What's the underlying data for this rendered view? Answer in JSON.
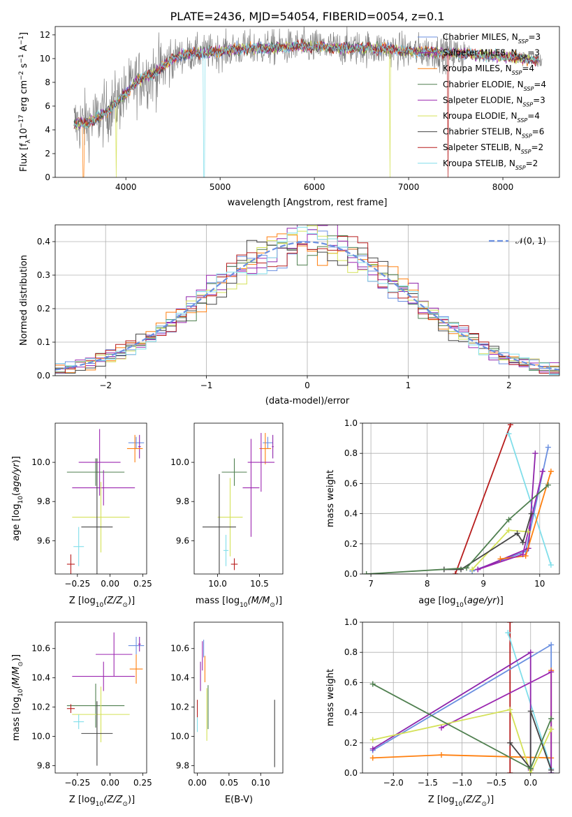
{
  "figure": {
    "title": "PLATE=2436, MJD=54054, FIBERID=0054, z=0.1"
  },
  "colors": {
    "Chabrier MILES": "#6a8fe0",
    "Salpeter MILES": "#8e24aa",
    "Kroupa MILES": "#ff7f0e",
    "Chabrier ELODIE": "#4f7f4f",
    "Salpeter ELODIE": "#9c27b0",
    "Kroupa ELODIE": "#d4e157",
    "Chabrier STELIB": "#444444",
    "Salpeter STELIB": "#b71c1c",
    "Kroupa STELIB": "#80deea",
    "data": "#808080"
  },
  "chart_data": [
    {
      "id": "spectrum",
      "type": "line",
      "xlabel": "wavelength [Angstrom, rest frame]",
      "ylabel": "Flux [f",
      "ylabel_parts": [
        "λ",
        "10",
        "−17",
        " erg cm",
        "−2",
        " s",
        "−1",
        " A",
        "−1",
        "]"
      ],
      "xlim": [
        3250,
        8600
      ],
      "ylim": [
        0,
        12.7
      ],
      "xticks": [
        "4000",
        "5000",
        "6000",
        "7000",
        "8000"
      ],
      "yticks": [
        "0",
        "2",
        "4",
        "6",
        "8",
        "10",
        "12"
      ],
      "legend_position": "right",
      "legend": [
        {
          "name": "Chabrier MILES",
          "nssp": "3"
        },
        {
          "name": "Salpeter MILES",
          "nssp": "3"
        },
        {
          "name": "Kroupa MILES",
          "nssp": "4"
        },
        {
          "name": "Chabrier ELODIE",
          "nssp": "4"
        },
        {
          "name": "Salpeter ELODIE",
          "nssp": "3"
        },
        {
          "name": "Kroupa ELODIE",
          "nssp": "4"
        },
        {
          "name": "Chabrier STELIB",
          "nssp": "6"
        },
        {
          "name": "Salpeter STELIB",
          "nssp": "2"
        },
        {
          "name": "Kroupa STELIB",
          "nssp": "2"
        }
      ],
      "continuum": {
        "x": [
          3450,
          3600,
          3700,
          3800,
          3900,
          4000,
          4100,
          4200,
          4300,
          4400,
          4500,
          4600,
          4800,
          5000,
          5200,
          5500,
          5800,
          6000,
          6200,
          6500,
          6800,
          7000,
          7200,
          7400,
          7600,
          8000,
          8400
        ],
        "y": [
          4.5,
          4.6,
          5.0,
          5.5,
          6.3,
          7.0,
          8.0,
          8.5,
          8.7,
          9.3,
          10.0,
          10.3,
          10.5,
          10.6,
          10.8,
          10.9,
          11.0,
          11.0,
          10.9,
          10.9,
          10.8,
          10.6,
          10.6,
          10.5,
          10.4,
          10.2,
          9.8
        ]
      },
      "spectrum_x_range": [
        3450,
        8420
      ],
      "model_x_range": [
        3450,
        8380
      ],
      "dips": [
        {
          "series": "Kroupa MILES",
          "x": 3550
        },
        {
          "series": "Kroupa ELODIE",
          "x": 3900
        },
        {
          "series": "Kroupa STELIB",
          "x": 4830
        },
        {
          "series": "Kroupa ELODIE",
          "x": 6800
        },
        {
          "series": "Salpeter STELIB",
          "x": 7420
        }
      ]
    },
    {
      "id": "residuals",
      "type": "histogram",
      "xlabel": "(data-model)/error",
      "ylabel": "Normed distribution",
      "xlim": [
        -2.5,
        2.5
      ],
      "ylim": [
        0,
        0.45
      ],
      "xticks": [
        "−2",
        "−1",
        "0",
        "1",
        "2"
      ],
      "yticks": [
        "0.0",
        "0.1",
        "0.2",
        "0.3",
        "0.4"
      ],
      "bin_width": 0.1,
      "grid": true,
      "normal_curve_label": "𝒩(0, 1)",
      "legend_position": "top-right"
    },
    {
      "id": "age_vs_Z",
      "type": "errorbar",
      "xlabel": "Z [log",
      "xlabel_parts": [
        "10",
        "(Z/Z",
        "⊙",
        ")]"
      ],
      "ylabel": "age  [log",
      "ylabel_parts": [
        "10",
        "(",
        "age/yr",
        ")]"
      ],
      "xlim": [
        -0.42,
        0.28
      ],
      "ylim": [
        9.43,
        10.2
      ],
      "xticks": [
        "−0.25",
        "0.00",
        "0.25"
      ],
      "yticks": [
        "9.6",
        "9.8",
        "10.0"
      ],
      "points": [
        {
          "series": "Chabrier MILES",
          "x": 0.2,
          "y": 10.1,
          "xerr": 0.06,
          "yerr": 0.03
        },
        {
          "series": "Salpeter MILES",
          "x": 0.225,
          "y": 10.08,
          "xerr": 0.01,
          "yerr": 0.06
        },
        {
          "series": "Kroupa MILES",
          "x": 0.19,
          "y": 10.07,
          "xerr": 0.06,
          "yerr": 0.07
        },
        {
          "series": "Chabrier ELODIE",
          "x": -0.11,
          "y": 9.95,
          "xerr": 0.22,
          "yerr": 0.07
        },
        {
          "series": "Salpeter ELODIE",
          "x": -0.05,
          "y": 9.87,
          "xerr": 0.24,
          "yerr": 0.09
        },
        {
          "series": "Kroupa ELODIE",
          "x": -0.07,
          "y": 9.72,
          "xerr": 0.22,
          "yerr": 0.18
        },
        {
          "series": "Chabrier STELIB",
          "x": -0.1,
          "y": 9.67,
          "xerr": 0.12,
          "yerr": 0.35
        },
        {
          "series": "Salpeter STELIB",
          "x": -0.3,
          "y": 9.48,
          "xerr": 0.03,
          "yerr": 0.05
        },
        {
          "series": "Kroupa STELIB",
          "x": -0.24,
          "y": 9.57,
          "xerr": 0.04,
          "yerr": 0.1
        },
        {
          "series": "Salpeter ELODIE",
          "x": -0.08,
          "y": 10.0,
          "xerr": 0.16,
          "yerr": 0.17
        }
      ]
    },
    {
      "id": "age_vs_mass",
      "type": "errorbar",
      "xlabel": "mass [log",
      "xlabel_parts": [
        "10",
        "(M/M",
        "⊙",
        ")]"
      ],
      "ylabel": "",
      "xlim": [
        9.72,
        10.78
      ],
      "ylim": [
        9.43,
        10.2
      ],
      "xticks": [
        "10.0",
        "10.5"
      ],
      "yticks": [
        "9.6",
        "9.8",
        "10.0"
      ],
      "points": [
        {
          "series": "Chabrier MILES",
          "x": 10.6,
          "y": 10.1,
          "xerr": 0.06,
          "yerr": 0.03
        },
        {
          "series": "Salpeter MILES",
          "x": 10.66,
          "y": 10.08,
          "xerr": 0.01,
          "yerr": 0.06
        },
        {
          "series": "Kroupa MILES",
          "x": 10.57,
          "y": 10.07,
          "xerr": 0.07,
          "yerr": 0.08
        },
        {
          "series": "Chabrier ELODIE",
          "x": 10.2,
          "y": 9.95,
          "xerr": 0.15,
          "yerr": 0.07
        },
        {
          "series": "Salpeter ELODIE",
          "x": 10.4,
          "y": 9.87,
          "xerr": 0.1,
          "yerr": 0.25
        },
        {
          "series": "Kroupa ELODIE",
          "x": 10.15,
          "y": 9.72,
          "xerr": 0.15,
          "yerr": 0.2
        },
        {
          "series": "Chabrier STELIB",
          "x": 10.02,
          "y": 9.67,
          "xerr": 0.2,
          "yerr": 0.27
        },
        {
          "series": "Salpeter STELIB",
          "x": 10.2,
          "y": 9.48,
          "xerr": 0.04,
          "yerr": 0.03
        },
        {
          "series": "Kroupa STELIB",
          "x": 10.1,
          "y": 9.55,
          "xerr": 0.03,
          "yerr": 0.08
        },
        {
          "series": "Salpeter ELODIE",
          "x": 10.52,
          "y": 10.0,
          "xerr": 0.16,
          "yerr": 0.15
        }
      ]
    },
    {
      "id": "weight_vs_age",
      "type": "line",
      "xlabel": "age  [log",
      "xlabel_parts": [
        "10",
        "(",
        "age/yr",
        ")]"
      ],
      "ylabel": "mass weight",
      "xlim": [
        6.85,
        10.35
      ],
      "ylim": [
        0,
        1
      ],
      "xticks": [
        "7",
        "8",
        "9",
        "10"
      ],
      "yticks": [
        "0.0",
        "0.2",
        "0.4",
        "0.6",
        "0.8",
        "1.0"
      ],
      "grid": true,
      "series": [
        {
          "name": "Salpeter STELIB",
          "x": [
            8.5,
            9.48
          ],
          "y": [
            0.0,
            0.99
          ]
        },
        {
          "name": "Kroupa STELIB",
          "x": [
            9.45,
            10.2
          ],
          "y": [
            0.93,
            0.06
          ]
        },
        {
          "name": "Chabrier MILES",
          "x": [
            8.8,
            9.75,
            10.15
          ],
          "y": [
            0.02,
            0.15,
            0.84
          ]
        },
        {
          "name": "Salpeter MILES",
          "x": [
            8.9,
            9.8,
            9.92
          ],
          "y": [
            0.03,
            0.17,
            0.8
          ]
        },
        {
          "name": "Kroupa MILES",
          "x": [
            9.3,
            9.75,
            10.2
          ],
          "y": [
            0.1,
            0.12,
            0.68
          ]
        },
        {
          "name": "Salpeter ELODIE",
          "x": [
            8.9,
            9.7,
            10.05
          ],
          "y": [
            0.03,
            0.13,
            0.68
          ]
        },
        {
          "name": "Kroupa ELODIE",
          "x": [
            8.8,
            9.45,
            9.8
          ],
          "y": [
            0.03,
            0.29,
            0.28
          ]
        },
        {
          "name": "Chabrier STELIB",
          "x": [
            8.3,
            8.6,
            9.6,
            9.7,
            9.85
          ],
          "y": [
            0.03,
            0.03,
            0.27,
            0.21,
            0.4
          ]
        },
        {
          "name": "Chabrier ELODIE",
          "x": [
            6.92,
            8.7,
            9.45,
            10.15
          ],
          "y": [
            0.0,
            0.04,
            0.36,
            0.59
          ]
        }
      ]
    },
    {
      "id": "mass_vs_Z",
      "type": "errorbar",
      "xlabel": "Z [log",
      "xlabel_parts": [
        "10",
        "(Z/Z",
        "⊙",
        ")]"
      ],
      "ylabel": "mass [log",
      "ylabel_parts": [
        "10",
        "(M/M",
        "⊙",
        ")]"
      ],
      "xlim": [
        -0.42,
        0.28
      ],
      "ylim": [
        9.75,
        10.78
      ],
      "xticks": [
        "−0.25",
        "0.00",
        "0.25"
      ],
      "yticks": [
        "9.8",
        "10.0",
        "10.2",
        "10.4",
        "10.6"
      ],
      "points": [
        {
          "series": "Chabrier MILES",
          "x": 0.2,
          "y": 10.62,
          "xerr": 0.06,
          "yerr": 0.06
        },
        {
          "series": "Salpeter MILES",
          "x": 0.225,
          "y": 10.63,
          "xerr": 0.01,
          "yerr": 0.05
        },
        {
          "series": "Kroupa MILES",
          "x": 0.2,
          "y": 10.46,
          "xerr": 0.05,
          "yerr": 0.1
        },
        {
          "series": "Chabrier ELODIE",
          "x": -0.11,
          "y": 10.21,
          "xerr": 0.22,
          "yerr": 0.15
        },
        {
          "series": "Salpeter ELODIE",
          "x": -0.05,
          "y": 10.41,
          "xerr": 0.24,
          "yerr": 0.1
        },
        {
          "series": "Kroupa ELODIE",
          "x": -0.07,
          "y": 10.15,
          "xerr": 0.22,
          "yerr": 0.19
        },
        {
          "series": "Chabrier STELIB",
          "x": -0.1,
          "y": 10.02,
          "xerr": 0.12,
          "yerr": 0.22
        },
        {
          "series": "Salpeter STELIB",
          "x": -0.3,
          "y": 10.19,
          "xerr": 0.03,
          "yerr": 0.03
        },
        {
          "series": "Kroupa STELIB",
          "x": -0.24,
          "y": 10.1,
          "xerr": 0.04,
          "yerr": 0.05
        },
        {
          "series": "Salpeter ELODIE",
          "x": 0.03,
          "y": 10.56,
          "xerr": 0.14,
          "yerr": 0.15
        }
      ]
    },
    {
      "id": "mass_vs_EBV",
      "type": "errorbar",
      "xlabel": "E(B-V)",
      "ylabel": "",
      "xlim": [
        -0.005,
        0.135
      ],
      "ylim": [
        9.75,
        10.78
      ],
      "xticks": [
        "0.00",
        "0.05",
        "0.10"
      ],
      "yticks": [
        "9.8",
        "10.0",
        "10.2",
        "10.4",
        "10.6"
      ],
      "points": [
        {
          "series": "Chabrier MILES",
          "x": 0.01,
          "y": 10.6,
          "xerr": 0,
          "yerr": 0.06
        },
        {
          "series": "Salpeter ELODIE",
          "x": 0.008,
          "y": 10.55,
          "xerr": 0,
          "yerr": 0.1
        },
        {
          "series": "Kroupa MILES",
          "x": 0.012,
          "y": 10.46,
          "xerr": 0,
          "yerr": 0.09
        },
        {
          "series": "Salpeter MILES",
          "x": 0.005,
          "y": 10.41,
          "xerr": 0,
          "yerr": 0.1
        },
        {
          "series": "Chabrier ELODIE",
          "x": 0.017,
          "y": 10.2,
          "xerr": 0,
          "yerr": 0.15
        },
        {
          "series": "Kroupa ELODIE",
          "x": 0.015,
          "y": 10.15,
          "xerr": 0,
          "yerr": 0.18
        },
        {
          "series": "Chabrier STELIB",
          "x": 0.122,
          "y": 10.02,
          "xerr": 0,
          "yerr": 0.23
        },
        {
          "series": "Salpeter STELIB",
          "x": 0.0,
          "y": 10.19,
          "xerr": 0,
          "yerr": 0.06
        },
        {
          "series": "Kroupa STELIB",
          "x": 0.0,
          "y": 10.08,
          "xerr": 0,
          "yerr": 0.05
        }
      ]
    },
    {
      "id": "weight_vs_Z",
      "type": "line",
      "xlabel": "Z [log",
      "xlabel_parts": [
        "10",
        "(Z/Z",
        "⊙",
        ")]"
      ],
      "ylabel": "mass weight",
      "xlim": [
        -2.45,
        0.42
      ],
      "ylim": [
        0,
        1
      ],
      "xticks": [
        "−2.0",
        "−1.5",
        "−1.0",
        "−0.5",
        "0.0"
      ],
      "yticks": [
        "0.0",
        "0.2",
        "0.4",
        "0.6",
        "0.8",
        "1.0"
      ],
      "grid": true,
      "series": [
        {
          "name": "Salpeter STELIB",
          "x": [
            -0.3,
            -0.3,
            -0.3
          ],
          "y": [
            0.0,
            0.2,
            1.0
          ]
        },
        {
          "name": "Kroupa STELIB",
          "x": [
            -0.33,
            0.3
          ],
          "y": [
            0.93,
            0.03
          ]
        },
        {
          "name": "Chabrier MILES",
          "x": [
            -2.3,
            0.3,
            0.3
          ],
          "y": [
            0.15,
            0.85,
            0.0
          ]
        },
        {
          "name": "Salpeter MILES",
          "x": [
            -2.3,
            0.0,
            0.0
          ],
          "y": [
            0.16,
            0.8,
            0.02
          ]
        },
        {
          "name": "Kroupa MILES",
          "x": [
            -2.3,
            -1.3,
            0.3,
            0.3
          ],
          "y": [
            0.1,
            0.12,
            0.1,
            0.68
          ]
        },
        {
          "name": "Salpeter ELODIE",
          "x": [
            -1.3,
            0.3,
            0.3
          ],
          "y": [
            0.3,
            0.67,
            0.0
          ]
        },
        {
          "name": "Kroupa ELODIE",
          "x": [
            -2.3,
            -0.3,
            0.0,
            0.3
          ],
          "y": [
            0.22,
            0.42,
            0.0,
            0.29
          ]
        },
        {
          "name": "Chabrier STELIB",
          "x": [
            -0.3,
            0.0,
            0.0,
            0.3
          ],
          "y": [
            0.2,
            0.03,
            0.41,
            0.02
          ]
        },
        {
          "name": "Chabrier ELODIE",
          "x": [
            -2.3,
            0.0,
            0.3
          ],
          "y": [
            0.59,
            0.03,
            0.36
          ]
        }
      ]
    }
  ]
}
